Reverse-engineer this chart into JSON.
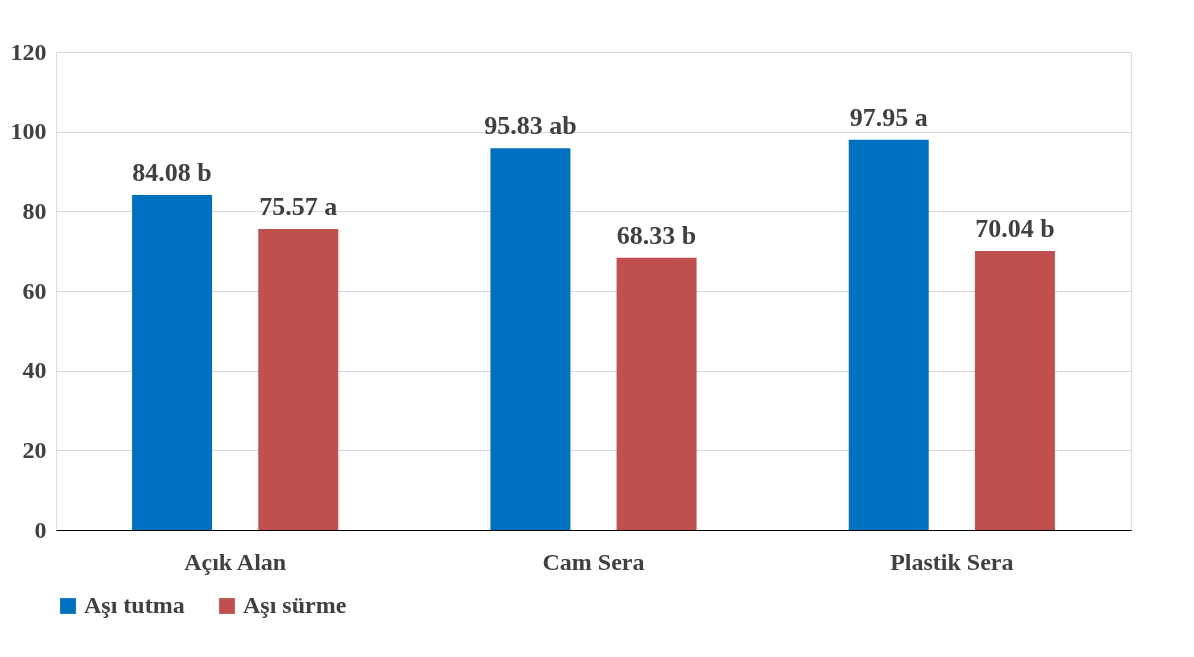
{
  "chart_data": {
    "type": "bar",
    "categories": [
      "Açık Alan",
      "Cam Sera",
      "Plastik Sera"
    ],
    "series": [
      {
        "name": "Aşı tutma",
        "color": "#0070c0",
        "values": [
          84.08,
          95.83,
          97.95
        ],
        "value_labels": [
          "84.08 b",
          "95.83 ab",
          "97.95 a"
        ]
      },
      {
        "name": "Aşı sürme",
        "color": "#c0504d",
        "values": [
          75.57,
          68.33,
          70.04
        ],
        "value_labels": [
          "75.57 a",
          "68.33 b",
          "70.04 b"
        ]
      }
    ],
    "ylim": [
      0,
      120
    ],
    "yticks": [
      0,
      20,
      40,
      60,
      80,
      100,
      120
    ],
    "grid": "y",
    "legend": "bottom"
  }
}
